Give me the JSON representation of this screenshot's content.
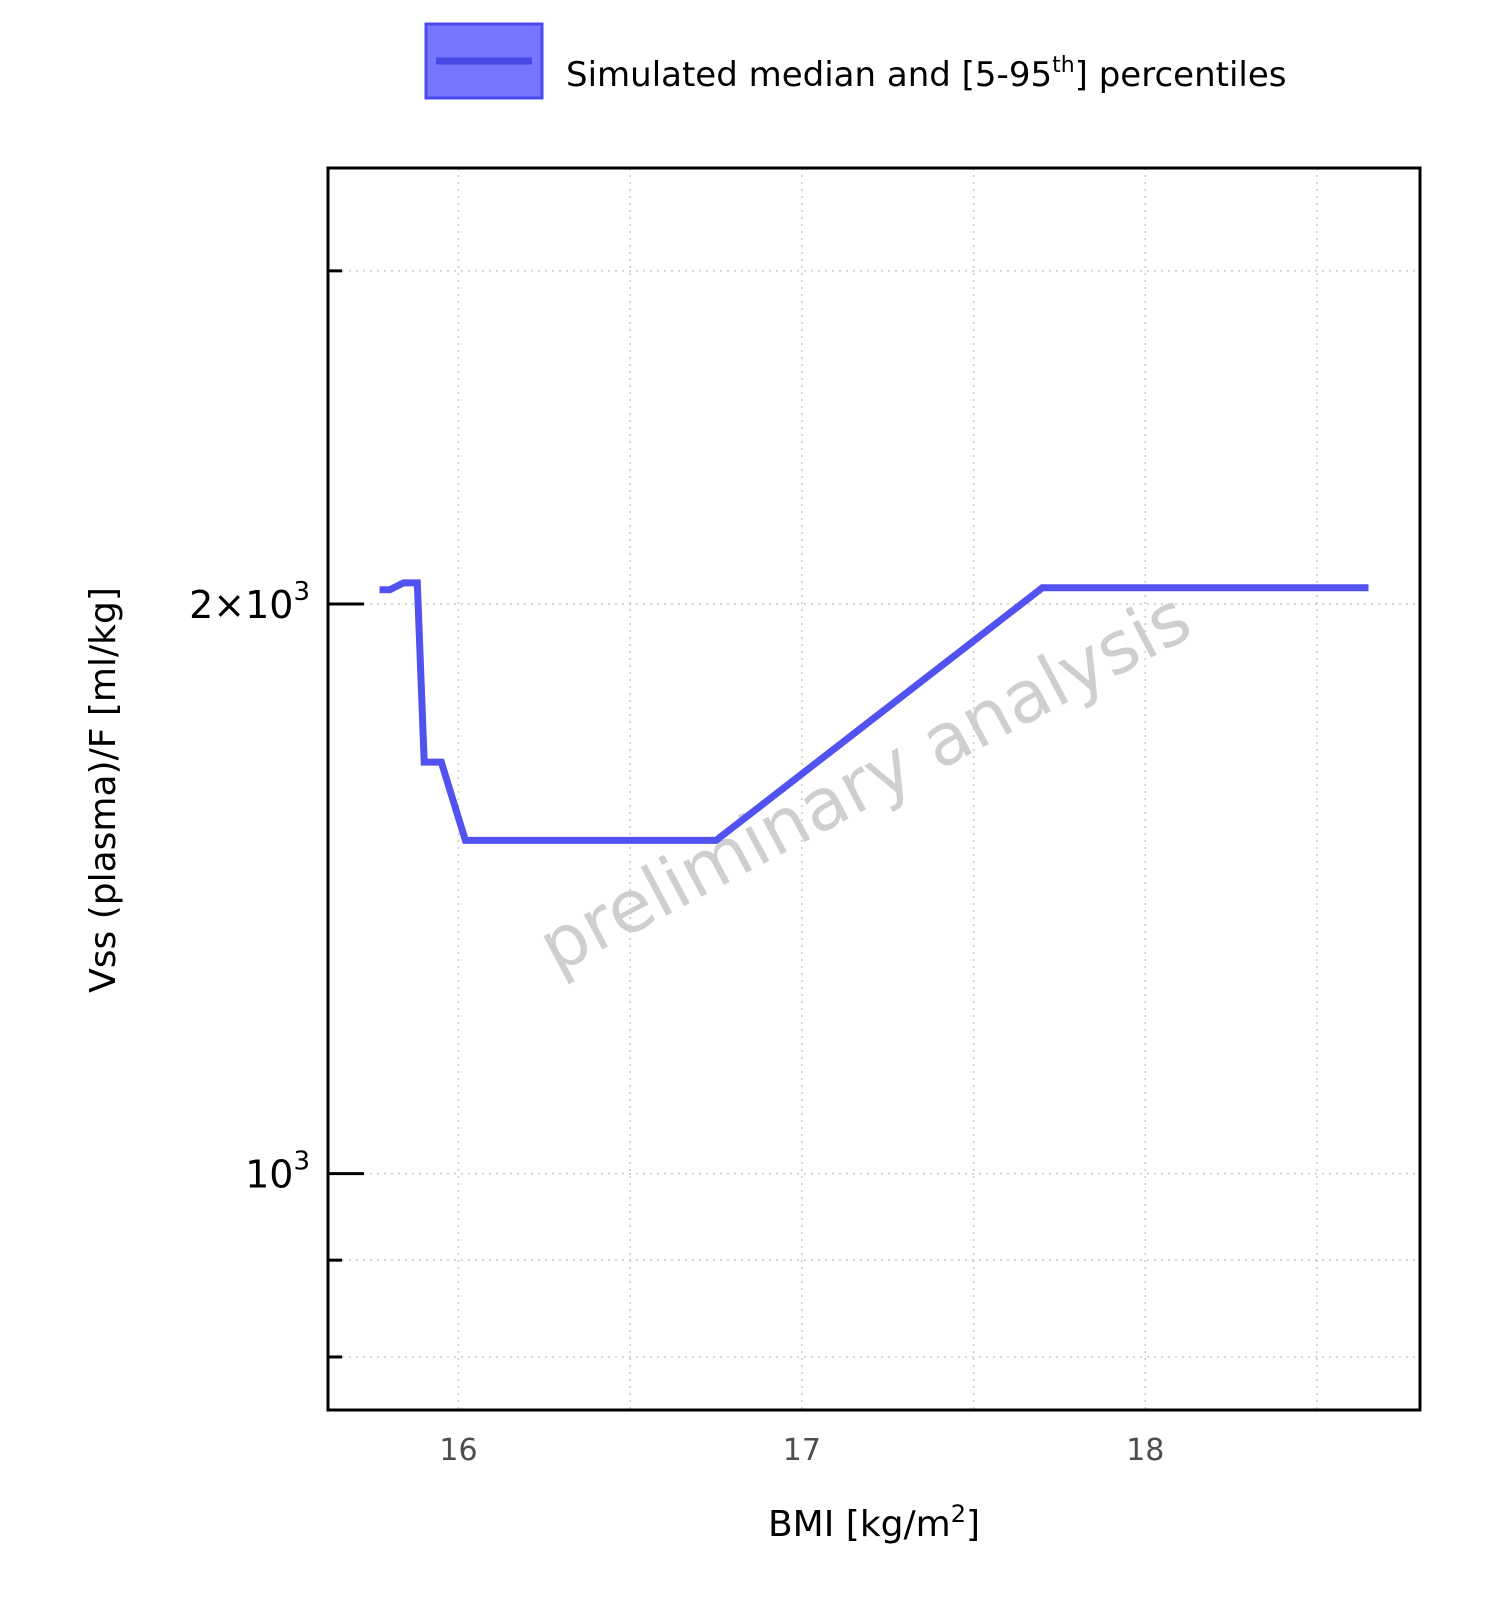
{
  "chart_data": {
    "type": "line",
    "legend": {
      "label_main": "Simulated median and [5-95",
      "label_sup": "th",
      "label_end": "] percentiles",
      "placement": "top"
    },
    "xlabel": {
      "main": "BMI [kg/m",
      "sup": "2",
      "end": "]"
    },
    "ylabel": "Vss (plasma)/F [ml/kg]",
    "xlim": [
      15.62,
      18.8
    ],
    "ylim": [
      750,
      3400
    ],
    "y_scale": "log",
    "grid": true,
    "x_ticks": [
      16,
      17,
      18
    ],
    "x_tick_labels": [
      "16",
      "17",
      "18"
    ],
    "x_minor_ticks": [
      16.5,
      17.5,
      18.5
    ],
    "y_ticks": [
      {
        "value": 2000,
        "mantissa": "2",
        "times": "×",
        "base": "10",
        "exp": "3"
      },
      {
        "value": 1000,
        "mantissa": "",
        "times": "",
        "base": "10",
        "exp": "3"
      }
    ],
    "y_minor_ticks": [
      800,
      900,
      3000,
      4000
    ],
    "watermark": "preliminary analysis",
    "colors": {
      "series": "#5252f0",
      "band": "#7575ff"
    },
    "series": [
      {
        "name": "Simulated median and [5-95th] percentiles",
        "x": [
          15.77,
          15.8,
          15.84,
          15.88,
          15.9,
          15.92,
          15.95,
          16.02,
          16.6,
          16.75,
          17.7,
          18.65
        ],
        "y": [
          2035,
          2035,
          2052,
          2052,
          1650,
          1650,
          1650,
          1500,
          1500,
          1500,
          2040,
          2040
        ]
      }
    ]
  }
}
